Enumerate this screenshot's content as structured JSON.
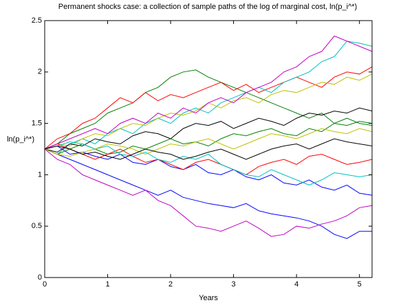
{
  "chart_data": {
    "type": "line",
    "title": "Permanent shocks case: a collection of sample paths of the log of marginal cost, ln(p_i^*)",
    "xlabel": "Years",
    "ylabel": "ln(p_i^*)",
    "xlim": [
      0,
      5.2
    ],
    "ylim": [
      0,
      2.5
    ],
    "xticks": [
      0,
      1,
      2,
      3,
      4,
      5
    ],
    "yticks": [
      0,
      0.5,
      1,
      1.5,
      2,
      2.5
    ],
    "grid": false,
    "x": [
      0,
      0.2,
      0.4,
      0.6,
      0.8,
      1,
      1.2,
      1.4,
      1.6,
      1.8,
      2,
      2.2,
      2.4,
      2.6,
      2.8,
      3,
      3.2,
      3.4,
      3.6,
      3.8,
      4,
      4.2,
      4.4,
      4.6,
      4.8,
      5,
      5.2
    ],
    "series": [
      {
        "color": "#0000ff",
        "values": [
          1.25,
          1.2,
          1.15,
          1.1,
          1.05,
          1.0,
          0.95,
          0.9,
          0.85,
          0.8,
          0.85,
          0.78,
          0.75,
          0.72,
          0.7,
          0.68,
          0.72,
          0.65,
          0.62,
          0.6,
          0.58,
          0.55,
          0.5,
          0.42,
          0.38,
          0.45,
          0.45
        ]
      },
      {
        "color": "#008000",
        "values": [
          1.25,
          1.3,
          1.4,
          1.45,
          1.5,
          1.6,
          1.65,
          1.7,
          1.8,
          1.85,
          1.95,
          2.0,
          2.02,
          1.95,
          1.9,
          1.85,
          1.8,
          1.75,
          1.7,
          1.65,
          1.6,
          1.55,
          1.6,
          1.5,
          1.55,
          1.5,
          1.48
        ]
      },
      {
        "color": "#ff0000",
        "values": [
          1.25,
          1.35,
          1.4,
          1.5,
          1.55,
          1.65,
          1.75,
          1.7,
          1.8,
          1.72,
          1.78,
          1.75,
          1.8,
          1.85,
          1.9,
          1.82,
          1.88,
          1.8,
          1.85,
          1.9,
          1.95,
          1.9,
          1.85,
          1.95,
          2.0,
          1.98,
          2.05
        ]
      },
      {
        "color": "#00bfbf",
        "values": [
          1.25,
          1.2,
          1.3,
          1.35,
          1.3,
          1.4,
          1.45,
          1.4,
          1.5,
          1.55,
          1.5,
          1.6,
          1.65,
          1.6,
          1.7,
          1.75,
          1.8,
          1.85,
          1.8,
          1.9,
          1.95,
          2.0,
          2.1,
          2.15,
          2.3,
          2.28,
          2.25
        ]
      },
      {
        "color": "#bf00bf",
        "values": [
          1.25,
          1.15,
          1.1,
          1.0,
          0.95,
          0.9,
          0.85,
          0.8,
          0.85,
          0.75,
          0.7,
          0.6,
          0.5,
          0.48,
          0.45,
          0.5,
          0.55,
          0.48,
          0.4,
          0.42,
          0.5,
          0.48,
          0.52,
          0.55,
          0.6,
          0.68,
          0.7
        ]
      },
      {
        "color": "#bfbf00",
        "values": [
          1.25,
          1.3,
          1.28,
          1.35,
          1.4,
          1.38,
          1.45,
          1.5,
          1.48,
          1.55,
          1.6,
          1.58,
          1.62,
          1.7,
          1.65,
          1.72,
          1.75,
          1.7,
          1.78,
          1.82,
          1.8,
          1.85,
          1.9,
          1.88,
          1.95,
          1.92,
          1.98
        ]
      },
      {
        "color": "#000000",
        "values": [
          1.25,
          1.22,
          1.3,
          1.28,
          1.35,
          1.32,
          1.3,
          1.38,
          1.42,
          1.4,
          1.35,
          1.45,
          1.5,
          1.48,
          1.52,
          1.45,
          1.5,
          1.55,
          1.52,
          1.48,
          1.55,
          1.6,
          1.58,
          1.62,
          1.6,
          1.65,
          1.62
        ]
      },
      {
        "color": "#0000ff",
        "values": [
          1.25,
          1.28,
          1.2,
          1.22,
          1.18,
          1.15,
          1.2,
          1.12,
          1.1,
          1.15,
          1.08,
          1.05,
          1.1,
          1.02,
          1.0,
          1.05,
          0.98,
          0.95,
          1.0,
          0.92,
          0.9,
          0.95,
          0.88,
          0.85,
          0.9,
          0.82,
          0.8
        ]
      },
      {
        "color": "#008000",
        "values": [
          1.25,
          1.2,
          1.25,
          1.3,
          1.25,
          1.2,
          1.22,
          1.28,
          1.25,
          1.3,
          1.35,
          1.3,
          1.32,
          1.28,
          1.35,
          1.4,
          1.38,
          1.42,
          1.45,
          1.4,
          1.38,
          1.45,
          1.42,
          1.5,
          1.48,
          1.52,
          1.5
        ]
      },
      {
        "color": "#ff0000",
        "values": [
          1.25,
          1.3,
          1.25,
          1.2,
          1.15,
          1.2,
          1.25,
          1.18,
          1.12,
          1.15,
          1.1,
          1.05,
          1.12,
          1.15,
          1.1,
          1.05,
          1.0,
          1.08,
          1.12,
          1.15,
          1.1,
          1.18,
          1.2,
          1.15,
          1.1,
          1.12,
          1.15
        ]
      },
      {
        "color": "#00bfbf",
        "values": [
          1.25,
          1.28,
          1.32,
          1.3,
          1.25,
          1.28,
          1.2,
          1.18,
          1.22,
          1.15,
          1.12,
          1.18,
          1.15,
          1.2,
          1.1,
          1.05,
          1.0,
          0.98,
          1.05,
          1.0,
          0.95,
          0.9,
          0.95,
          1.02,
          1.0,
          0.98,
          1.0
        ]
      },
      {
        "color": "#bf00bf",
        "values": [
          1.25,
          1.3,
          1.35,
          1.4,
          1.45,
          1.4,
          1.5,
          1.55,
          1.5,
          1.6,
          1.55,
          1.65,
          1.6,
          1.7,
          1.75,
          1.7,
          1.8,
          1.85,
          1.9,
          2.0,
          2.05,
          2.15,
          2.2,
          2.35,
          2.3,
          2.25,
          2.2
        ]
      },
      {
        "color": "#bfbf00",
        "values": [
          1.25,
          1.2,
          1.18,
          1.22,
          1.25,
          1.3,
          1.28,
          1.25,
          1.2,
          1.25,
          1.3,
          1.28,
          1.32,
          1.35,
          1.3,
          1.25,
          1.3,
          1.35,
          1.4,
          1.38,
          1.35,
          1.4,
          1.45,
          1.42,
          1.4,
          1.45,
          1.42
        ]
      },
      {
        "color": "#000000",
        "values": [
          1.25,
          1.28,
          1.25,
          1.2,
          1.22,
          1.18,
          1.15,
          1.2,
          1.25,
          1.22,
          1.2,
          1.15,
          1.18,
          1.22,
          1.25,
          1.2,
          1.15,
          1.2,
          1.25,
          1.28,
          1.3,
          1.25,
          1.3,
          1.35,
          1.32,
          1.3,
          1.28
        ]
      }
    ]
  }
}
